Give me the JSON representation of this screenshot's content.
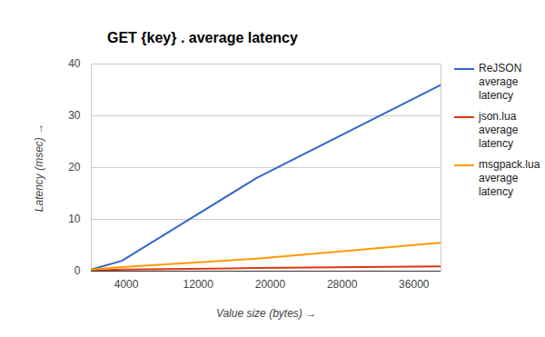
{
  "chart_data": {
    "type": "line",
    "title": "GET {key} . average latency",
    "x_label": "Value size (bytes)",
    "y_label": "Latency (msec)",
    "x": [
      100,
      3500,
      18500,
      39000
    ],
    "series": [
      {
        "name": "ReJSON average latency",
        "color": "#3366cc",
        "values": [
          0.3,
          2,
          18,
          36
        ]
      },
      {
        "name": "json.lua average latency",
        "color": "#dc3912",
        "values": [
          0.1,
          0.3,
          0.6,
          0.9
        ]
      },
      {
        "name": "msgpack.lua average latency",
        "color": "#ff9900",
        "values": [
          0.3,
          0.8,
          2.4,
          5.5
        ]
      }
    ],
    "xlim": [
      100,
      39000
    ],
    "xticks": [
      4000,
      12000,
      20000,
      28000,
      36000
    ],
    "ylim": [
      0,
      40
    ],
    "yticks": [
      0,
      10,
      20,
      30,
      40
    ],
    "grid": true,
    "legend": "right"
  }
}
